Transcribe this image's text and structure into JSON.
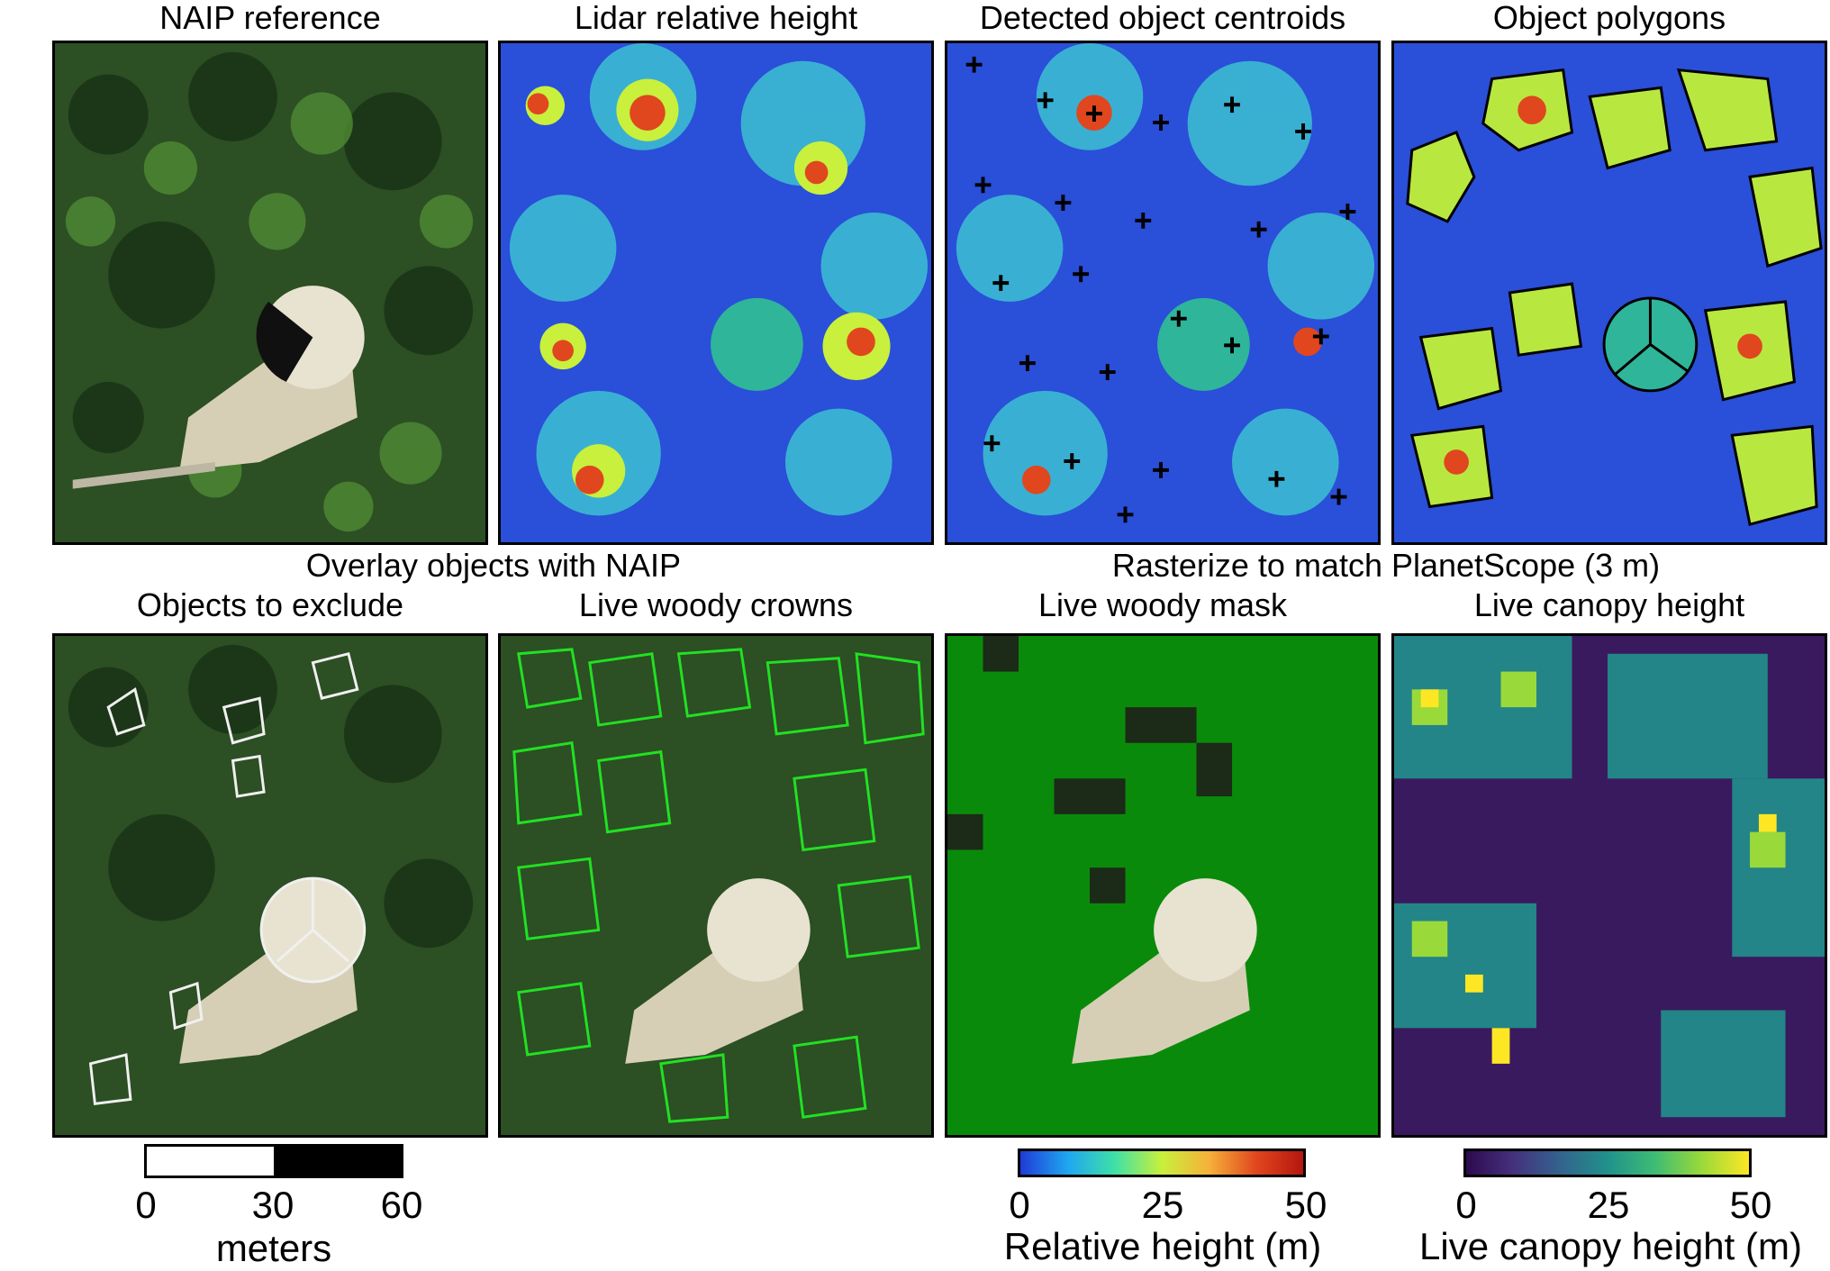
{
  "titles": {
    "row1": [
      "NAIP reference",
      "Lidar relative height",
      "Detected object centroids",
      "Object polygons"
    ],
    "row2_group_left": "Overlay objects with NAIP",
    "row2_group_right": "Rasterize to match PlanetScope (3 m)",
    "row2": [
      "Objects to exclude",
      "Live woody crowns",
      "Live woody mask",
      "Live canopy height"
    ]
  },
  "scalebar": {
    "ticks": [
      "0",
      "30",
      "60"
    ],
    "unit": "meters"
  },
  "colorbars": [
    {
      "ticks": [
        "0",
        "25",
        "50"
      ],
      "label": "Relative height (m)",
      "colors": [
        "#1f3bd6",
        "#1fa6f0",
        "#3fe0a8",
        "#c8f03c",
        "#f5b13a",
        "#e0471e",
        "#b5160e"
      ]
    },
    {
      "ticks": [
        "0",
        "25",
        "50"
      ],
      "label": "Live canopy height (m)",
      "colors": [
        "#2d0a4e",
        "#45317e",
        "#33638d",
        "#21918c",
        "#3ebc74",
        "#9ad93a",
        "#fde725"
      ]
    }
  ],
  "colors": {
    "forest_dark": "#1f3d1c",
    "forest_mid": "#3d6b2a",
    "clearing": "#d8d0b8",
    "lidar_background": "#2a4fd9",
    "crown_outline": "#22e022",
    "exclude_outline": "#f0f0f0",
    "mask_green": "#0a8a0a",
    "canopy_background": "#3a1a5e"
  }
}
